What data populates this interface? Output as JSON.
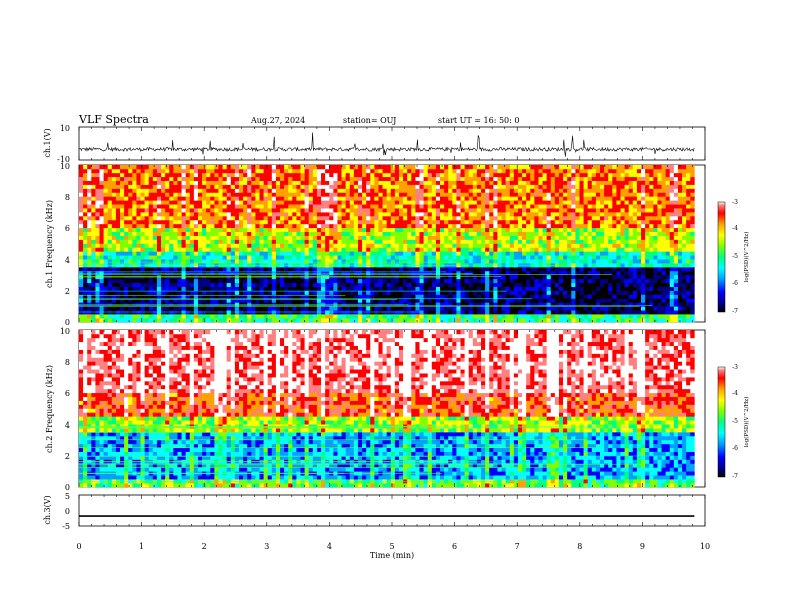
{
  "header": {
    "title": "VLF Spectra",
    "date": "Aug.27, 2024",
    "station": "station= OUJ",
    "start": "start  UT =   16: 50: 0"
  },
  "chart_data": [
    {
      "type": "line",
      "name": "ch1-waveform",
      "ylabel": "ch.1(V)",
      "ylim": [
        -10,
        10
      ],
      "ytick_labels": [
        "10",
        "-10"
      ],
      "xlim": [
        0,
        10
      ],
      "baseline": -3.5,
      "color": "#000000"
    },
    {
      "type": "heatmap",
      "name": "ch1-spectrogram",
      "ylabel": "ch.1 Frequency (kHz)",
      "ylim": [
        0,
        10
      ],
      "ytick_labels": [
        "0",
        "2",
        "4",
        "6",
        "8",
        "10"
      ],
      "xlim": [
        0,
        9.83
      ],
      "zlabel": "log(PSD)(V^2/Hz)",
      "zlim": [
        -7,
        -3
      ],
      "colorbar_ticks": [
        "-3",
        "-4",
        "-5",
        "-6",
        "-7"
      ],
      "colormap": [
        "#000000",
        "#000080",
        "#0000ff",
        "#00a0ff",
        "#00ffff",
        "#00ff80",
        "#80ff00",
        "#ffff00",
        "#ffa000",
        "#ff0000",
        "#ff8080",
        "#ffffff"
      ],
      "bands": [
        {
          "fmin": 0,
          "fmax": 0.6,
          "level": -5.2
        },
        {
          "fmin": 0.6,
          "fmax": 3.6,
          "level": -6.6
        },
        {
          "fmin": 3.6,
          "fmax": 4.6,
          "level": -5.4
        },
        {
          "fmin": 4.6,
          "fmax": 6.0,
          "level": -4.7
        },
        {
          "fmin": 6.0,
          "fmax": 10,
          "level": -4.1
        }
      ]
    },
    {
      "type": "heatmap",
      "name": "ch2-spectrogram",
      "ylabel": "ch.2 Frequency (kHz)",
      "ylim": [
        0,
        10
      ],
      "ytick_labels": [
        "0",
        "2",
        "4",
        "6",
        "8",
        "10"
      ],
      "xlim": [
        0,
        9.83
      ],
      "zlabel": "log(PSD)(V^2/Hz)",
      "zlim": [
        -7,
        -3
      ],
      "colorbar_ticks": [
        "-3",
        "-4",
        "-5",
        "-6",
        "-7"
      ],
      "bands": [
        {
          "fmin": 0,
          "fmax": 0.4,
          "level": -5.0
        },
        {
          "fmin": 0.4,
          "fmax": 3.4,
          "level": -5.8
        },
        {
          "fmin": 3.4,
          "fmax": 4.6,
          "level": -4.8
        },
        {
          "fmin": 4.6,
          "fmax": 6.0,
          "level": -3.9
        },
        {
          "fmin": 6.0,
          "fmax": 10,
          "level": -3.5
        }
      ]
    },
    {
      "type": "line",
      "name": "ch3-waveform",
      "ylabel": "ch.3(V)",
      "ylim": [
        -5,
        5
      ],
      "ytick_labels": [
        "5",
        "0",
        "-5"
      ],
      "xlim": [
        0,
        10
      ],
      "constant_value": -1.8,
      "color": "#000000"
    }
  ],
  "x_axis": {
    "label": "Time  (min)",
    "range": [
      0,
      10
    ],
    "tick_labels": [
      "0",
      "1",
      "2",
      "3",
      "4",
      "5",
      "6",
      "7",
      "8",
      "9",
      "10"
    ]
  }
}
